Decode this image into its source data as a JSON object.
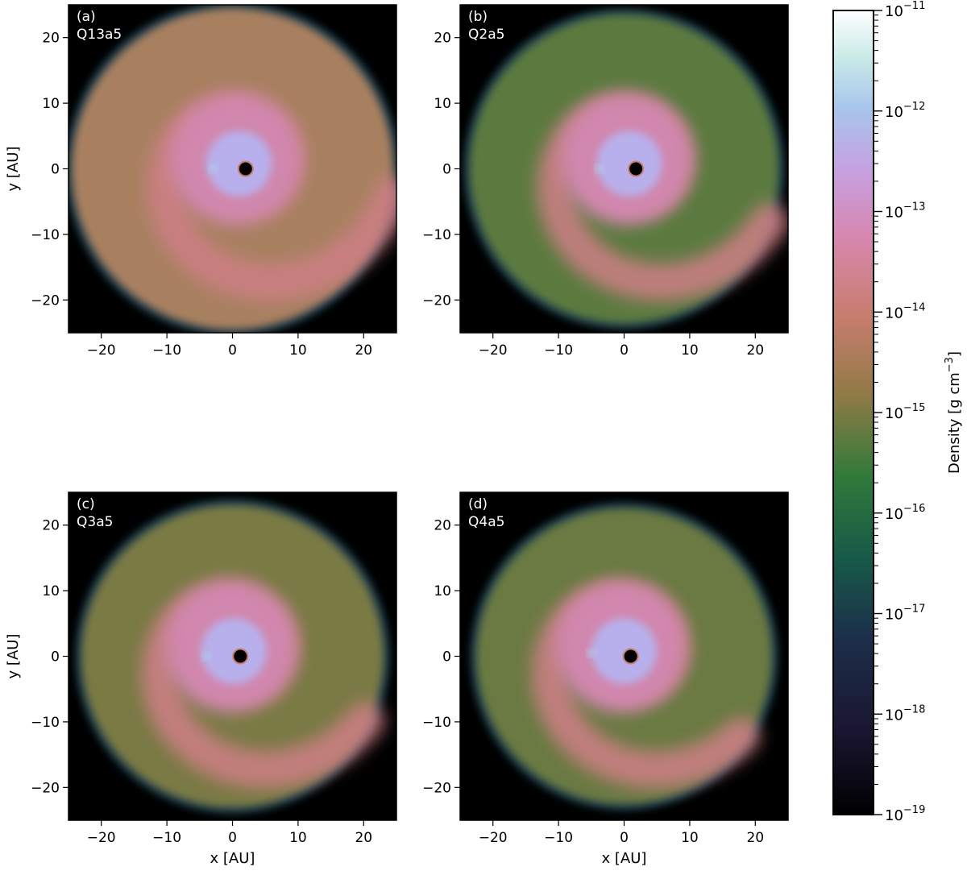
{
  "chart_data": {
    "type": "heatmap",
    "colormap": "cubehelix",
    "colorbar": {
      "label": "Density [g cm$^{-3}$]",
      "label_parts": [
        "Density [g cm",
        "−3",
        "]"
      ],
      "scale": "log",
      "range": [
        1e-19,
        1e-11
      ],
      "ticks": [
        {
          "value": 1e-11,
          "mantissa": "10",
          "exponent": "−11"
        },
        {
          "value": 1e-12,
          "mantissa": "10",
          "exponent": "−12"
        },
        {
          "value": 1e-13,
          "mantissa": "10",
          "exponent": "−13"
        },
        {
          "value": 1e-14,
          "mantissa": "10",
          "exponent": "−14"
        },
        {
          "value": 1e-15,
          "mantissa": "10",
          "exponent": "−15"
        },
        {
          "value": 1e-16,
          "mantissa": "10",
          "exponent": "−16"
        },
        {
          "value": 1e-17,
          "mantissa": "10",
          "exponent": "−17"
        },
        {
          "value": 1e-18,
          "mantissa": "10",
          "exponent": "−18"
        },
        {
          "value": 1e-19,
          "mantissa": "10",
          "exponent": "−19"
        }
      ]
    },
    "xlabel": "x [AU]",
    "ylabel": "y [AU]",
    "xlim": [
      -25,
      25
    ],
    "ylim": [
      -25,
      25
    ],
    "xticks": [
      -20,
      -10,
      0,
      10,
      20
    ],
    "yticks": [
      -20,
      -10,
      0,
      10,
      20
    ],
    "tick_labels": [
      "−20",
      "−10",
      "0",
      "10",
      "20"
    ],
    "panels": [
      {
        "label": "(a)",
        "model": "Q13a5",
        "sink_x": 2.0,
        "sink_y": 0.0,
        "outer_radius": 25.0,
        "outer_log_density": -15.0,
        "arm_tip_x": -3.0,
        "arm_tip_y": 0.0
      },
      {
        "label": "(b)",
        "model": "Q2a5",
        "sink_x": 1.8,
        "sink_y": 0.0,
        "outer_radius": 24.0,
        "outer_log_density": -15.7,
        "arm_tip_x": -3.8,
        "arm_tip_y": 0.0
      },
      {
        "label": "(c)",
        "model": "Q3a5",
        "sink_x": 1.2,
        "sink_y": 0.0,
        "outer_radius": 23.5,
        "outer_log_density": -15.5,
        "arm_tip_x": -4.0,
        "arm_tip_y": 0.0
      },
      {
        "label": "(d)",
        "model": "Q4a5",
        "sink_x": 1.0,
        "sink_y": 0.0,
        "outer_radius": 23.0,
        "outer_log_density": -15.6,
        "arm_tip_x": -5.0,
        "arm_tip_y": 0.5
      }
    ]
  }
}
